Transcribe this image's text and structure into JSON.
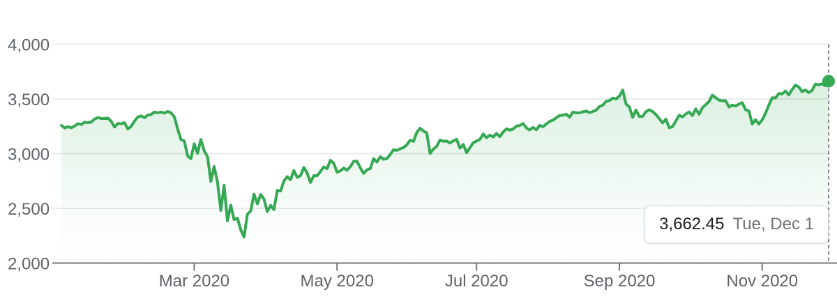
{
  "chart_data": {
    "type": "area",
    "grid": true,
    "legend": null,
    "ylim": [
      2000,
      4000
    ],
    "y_ticks": [
      {
        "label": "4,000",
        "value": 4000
      },
      {
        "label": "3,500",
        "value": 3500
      },
      {
        "label": "3,000",
        "value": 3000
      },
      {
        "label": "2,500",
        "value": 2500
      },
      {
        "label": "2,000",
        "value": 2000
      }
    ],
    "x_ticks": [
      {
        "label": "Mar 2020",
        "index": 40
      },
      {
        "label": "May 2020",
        "index": 83
      },
      {
        "label": "Jul 2020",
        "index": 125
      },
      {
        "label": "Sep 2020",
        "index": 168
      },
      {
        "label": "Nov 2020",
        "index": 211
      }
    ],
    "values": [
      3257.85,
      3234.85,
      3246.28,
      3237.18,
      3253.05,
      3274.7,
      3265.35,
      3288.13,
      3283.15,
      3289.29,
      3316.81,
      3329.62,
      3320.79,
      3321.75,
      3325.54,
      3295.47,
      3243.63,
      3276.24,
      3273.4,
      3283.66,
      3225.52,
      3248.92,
      3297.59,
      3334.69,
      3345.78,
      3327.71,
      3352.09,
      3357.75,
      3379.45,
      3373.94,
      3380.16,
      3370.29,
      3386.15,
      3373.23,
      3337.75,
      3225.89,
      3128.21,
      3116.39,
      2978.76,
      2954.22,
      3090.23,
      3003.37,
      3130.12,
      3023.94,
      2972.37,
      2746.56,
      2882.23,
      2741.38,
      2480.64,
      2711.02,
      2386.13,
      2529.19,
      2398.1,
      2409.39,
      2304.92,
      2237.4,
      2447.33,
      2475.56,
      2630.07,
      2541.47,
      2626.65,
      2584.59,
      2470.5,
      2526.9,
      2488.65,
      2663.68,
      2659.41,
      2749.98,
      2789.82,
      2761.63,
      2846.06,
      2783.36,
      2799.55,
      2874.56,
      2823.16,
      2736.56,
      2799.31,
      2797.8,
      2836.74,
      2878.48,
      2863.39,
      2939.51,
      2912.43,
      2830.71,
      2842.74,
      2868.44,
      2848.42,
      2881.19,
      2929.8,
      2930.32,
      2870.12,
      2820.0,
      2852.5,
      2863.7,
      2953.91,
      2922.94,
      2971.61,
      2948.51,
      2955.45,
      2991.77,
      3036.13,
      3029.73,
      3044.31,
      3055.73,
      3080.82,
      3122.87,
      3112.35,
      3193.93,
      3232.39,
      3207.18,
      3190.14,
      3002.1,
      3041.31,
      3066.59,
      3124.74,
      3113.49,
      3115.34,
      3097.74,
      3117.86,
      3131.29,
      3050.33,
      3083.76,
      3009.05,
      3053.24,
      3100.29,
      3115.86,
      3130.01,
      3179.72,
      3145.32,
      3169.94,
      3152.05,
      3185.04,
      3155.22,
      3197.52,
      3226.56,
      3215.57,
      3224.73,
      3251.84,
      3257.3,
      3276.02,
      3235.66,
      3215.63,
      3239.41,
      3218.44,
      3258.44,
      3246.22,
      3271.12,
      3294.61,
      3306.51,
      3327.77,
      3349.16,
      3351.28,
      3360.47,
      3333.69,
      3380.35,
      3373.43,
      3372.85,
      3381.99,
      3389.78,
      3374.85,
      3385.51,
      3397.16,
      3431.28,
      3443.62,
      3478.73,
      3484.55,
      3508.01,
      3500.31,
      3526.65,
      3580.84,
      3455.06,
      3426.96,
      3331.84,
      3398.96,
      3339.19,
      3340.97,
      3383.54,
      3401.2,
      3385.49,
      3357.01,
      3319.47,
      3281.06,
      3315.57,
      3236.92,
      3246.59,
      3298.46,
      3351.6,
      3335.47,
      3363.0,
      3380.8,
      3348.44,
      3408.63,
      3360.97,
      3419.45,
      3446.83,
      3477.14,
      3534.22,
      3511.93,
      3488.67,
      3483.34,
      3483.81,
      3426.92,
      3443.12,
      3435.56,
      3453.49,
      3465.39,
      3400.97,
      3390.68,
      3271.03,
      3310.11,
      3269.96,
      3310.24,
      3369.16,
      3443.44,
      3510.45,
      3509.44,
      3550.5,
      3545.53,
      3572.66,
      3537.01,
      3585.15,
      3626.91,
      3609.53,
      3567.79,
      3581.87,
      3557.54,
      3577.59,
      3635.41,
      3629.65,
      3638.35,
      3621.63,
      3662.45
    ],
    "last_point": {
      "value": 3662.45,
      "index": 231
    },
    "tooltip": {
      "value": "3,662.45",
      "date": "Tue, Dec 1"
    },
    "colors": {
      "line": "#34a853",
      "dot": "#34a853",
      "fill_top": "rgba(52,168,83,0.18)",
      "fill_mid": "rgba(52,168,83,0.02)",
      "fill_bottom": "rgba(52,168,83,0)",
      "gridline": "#e8eaec",
      "axis": "#757575",
      "tick_label": "#5f6368",
      "crosshair": "#80868b"
    }
  }
}
